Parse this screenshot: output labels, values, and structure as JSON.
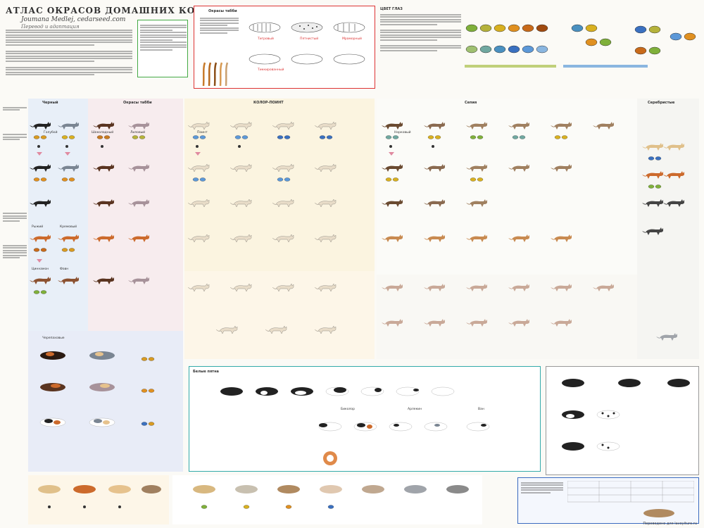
{
  "header": {
    "title": "АТЛАС ОКРАСОВ ДОМАШНИХ КОШЕК",
    "subtitle": "Joumana Medlej, cedarseed.com",
    "credit": "Перевод и адаптация"
  },
  "sections": {
    "eyes_title": "ЦВЕТ ГЛАЗ",
    "tabby_title": "Окрасы табби",
    "color_points_title": "КОЛОР-ПОИНТ",
    "white_title": "Белые пятна",
    "tortie_title": "Черепаховые",
    "silver_title": "Серебристые",
    "ticked_label": "Тиккированный",
    "mackerel_label": "Тигровый",
    "spotted_label": "Пятнистый",
    "classic_label": "Мраморный",
    "black_label": "Черный",
    "blue_label": "Голубой",
    "chocolate_label": "Шоколадный",
    "lilac_label": "Лиловый",
    "red_label": "Рыжий",
    "cream_label": "Кремовый",
    "cinnamon_label": "Циннамон",
    "fawn_label": "Фавн",
    "mink_label": "Норковый",
    "sepia_label": "Сепия",
    "point_label": "Поинт",
    "van_label": "Ван",
    "harlequin_label": "Арлекин",
    "bicolor_label": "Биколор"
  },
  "footer": {
    "text": "Переведено для lavoyiture.ru"
  },
  "colors": {
    "panel_blue": "#e9eef7",
    "panel_pink": "#f6ecef",
    "panel_cream": "#fbf4e3",
    "panel_green": "#eef5ea",
    "panel_grey": "#f0f0f0",
    "border_red": "#d33",
    "border_green": "#4a4",
    "accent_teal": "#3aa",
    "cat_black": "#222222",
    "cat_blue": "#7a8592",
    "cat_choc": "#5a3420",
    "cat_lilac": "#a7929a",
    "cat_red": "#cc6a2c",
    "cat_cream": "#e6c28d",
    "cat_cinnamon": "#8c5231",
    "cat_fawn": "#c9a998",
    "cat_point": "#e8dcc8",
    "cat_white": "#ffffff"
  }
}
